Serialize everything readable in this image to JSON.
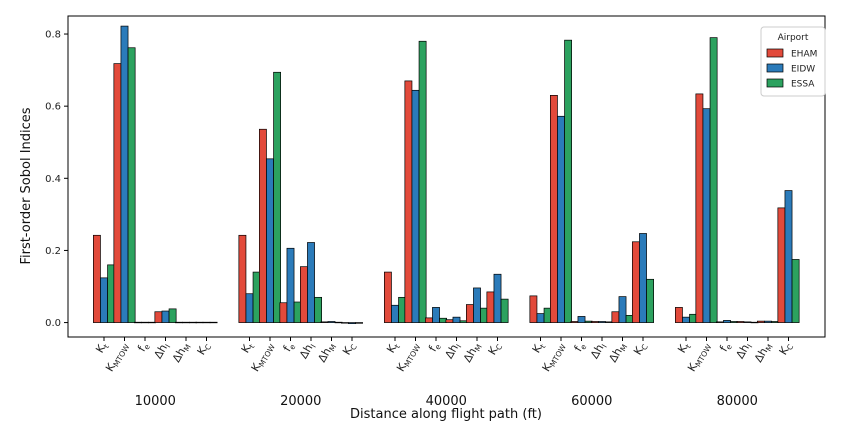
{
  "chart_data": {
    "type": "bar",
    "xlabel": "Distance along flight path (ft)",
    "ylabel": "First-order Sobol Indices",
    "ylim": [
      -0.04,
      0.85
    ],
    "yticks": [
      "0.0",
      "0.2",
      "0.4",
      "0.6",
      "0.8"
    ],
    "ytick_values": [
      0.0,
      0.2,
      0.4,
      0.6,
      0.8
    ],
    "grid": false,
    "legend": {
      "title": "Airport",
      "placement": "top-right"
    },
    "groups": [
      "10000",
      "20000",
      "40000",
      "60000",
      "80000"
    ],
    "parameters": [
      {
        "base": "K",
        "sub": "t"
      },
      {
        "base": "K",
        "sub": "MTOW"
      },
      {
        "base": "f",
        "sub": "e"
      },
      {
        "base": "Δh",
        "sub": "I"
      },
      {
        "base": "Δh",
        "sub": "M"
      },
      {
        "base": "K",
        "sub": "C"
      }
    ],
    "series": [
      {
        "name": "EHAM",
        "color": "#e24a3b",
        "values": [
          [
            0.242,
            0.718,
            0.001,
            0.03,
            0.001,
            0.001
          ],
          [
            0.242,
            0.536,
            0.055,
            0.155,
            0.002,
            -0.001
          ],
          [
            0.14,
            0.67,
            0.013,
            0.008,
            0.05,
            0.085
          ],
          [
            0.074,
            0.63,
            0.003,
            0.003,
            0.03,
            0.224
          ],
          [
            0.042,
            0.634,
            0.002,
            0.003,
            0.004,
            0.318
          ]
        ]
      },
      {
        "name": "EIDW",
        "color": "#2b7bba",
        "values": [
          [
            0.124,
            0.822,
            0.001,
            0.032,
            0.001,
            0.001
          ],
          [
            0.08,
            0.454,
            0.206,
            0.222,
            0.003,
            -0.003
          ],
          [
            0.048,
            0.644,
            0.042,
            0.015,
            0.096,
            0.134
          ],
          [
            0.025,
            0.572,
            0.017,
            0.003,
            0.072,
            0.247
          ],
          [
            0.015,
            0.593,
            0.006,
            0.002,
            0.004,
            0.366
          ]
        ]
      },
      {
        "name": "ESSA",
        "color": "#2ca25f",
        "values": [
          [
            0.16,
            0.762,
            0.001,
            0.038,
            0.001,
            0.001
          ],
          [
            0.14,
            0.694,
            0.057,
            0.07,
            0.001,
            -0.002
          ],
          [
            0.07,
            0.78,
            0.012,
            0.005,
            0.04,
            0.065
          ],
          [
            0.04,
            0.783,
            0.004,
            0.002,
            0.02,
            0.12
          ],
          [
            0.023,
            0.79,
            0.003,
            0.001,
            0.003,
            0.175
          ]
        ]
      }
    ]
  }
}
